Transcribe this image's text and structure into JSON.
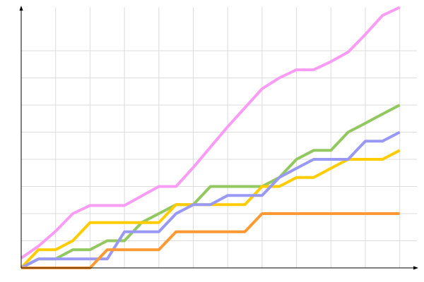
{
  "chart_data": {
    "type": "line",
    "x": [
      0,
      1,
      2,
      3,
      4,
      5,
      6,
      7,
      8,
      9,
      10,
      11,
      12,
      13,
      14,
      15,
      16,
      17,
      18,
      19,
      20,
      21,
      22
    ],
    "xlim": [
      0,
      23
    ],
    "xticks": [
      2,
      4,
      6,
      8,
      10,
      12,
      14,
      16,
      18,
      20,
      22
    ],
    "ylim": [
      0,
      9.6
    ],
    "yticks": [
      1,
      2,
      3,
      4,
      5,
      6,
      7,
      8
    ],
    "grid": true,
    "series": [
      {
        "color": "#f99cf5",
        "values": [
          0.36,
          0.8,
          1.35,
          2.0,
          2.3,
          2.3,
          2.3,
          2.65,
          3.0,
          3.0,
          3.7,
          4.45,
          5.2,
          5.9,
          6.6,
          7.0,
          7.3,
          7.3,
          7.6,
          7.95,
          8.6,
          9.3,
          9.6
        ]
      },
      {
        "color": "#93c860",
        "values": [
          0,
          0.33,
          0.33,
          0.67,
          0.67,
          1.0,
          1.0,
          1.67,
          2.0,
          2.33,
          2.33,
          3.0,
          3.0,
          3.0,
          3.0,
          3.33,
          4.0,
          4.33,
          4.33,
          5.0,
          5.33,
          5.67,
          6.0
        ]
      },
      {
        "color": "#ffcc00",
        "values": [
          0,
          0.67,
          0.67,
          1.0,
          1.67,
          1.67,
          1.67,
          1.67,
          1.67,
          2.33,
          2.33,
          2.33,
          2.33,
          2.33,
          3.0,
          3.0,
          3.33,
          3.33,
          3.67,
          4.0,
          4.0,
          4.0,
          4.33
        ]
      },
      {
        "color": "#9999f5",
        "values": [
          0,
          0.33,
          0.33,
          0.33,
          0.33,
          0.33,
          1.33,
          1.33,
          1.33,
          2.0,
          2.33,
          2.33,
          2.67,
          2.67,
          2.67,
          3.33,
          3.67,
          4.0,
          4.0,
          4.0,
          4.67,
          4.67,
          5.0
        ]
      },
      {
        "color": "#ff9933",
        "values": [
          0,
          0,
          0,
          0,
          0,
          0.67,
          0.67,
          0.67,
          0.67,
          1.33,
          1.33,
          1.33,
          1.33,
          1.33,
          2.0,
          2.0,
          2.0,
          2.0,
          2.0,
          2.0,
          2.0,
          2.0,
          2.0
        ]
      }
    ]
  }
}
